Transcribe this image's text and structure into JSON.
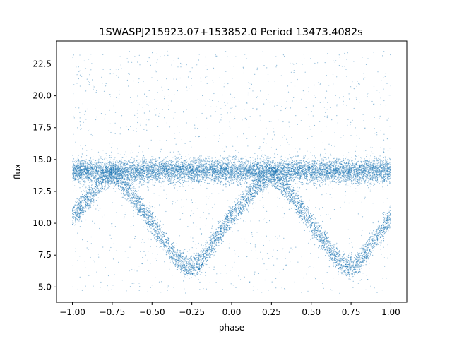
{
  "chart_data": {
    "type": "scatter",
    "title": "1SWASPJ215923.07+153852.0 Period 13473.4082s",
    "xlabel": "phase",
    "ylabel": "flux",
    "xlim": [
      -1.1,
      1.1
    ],
    "ylim": [
      3.8,
      24.3
    ],
    "xticks": [
      -1.0,
      -0.75,
      -0.5,
      -0.25,
      0.0,
      0.25,
      0.5,
      0.75,
      1.0
    ],
    "xtick_labels": [
      "−1.00",
      "−0.75",
      "−0.50",
      "−0.25",
      "0.00",
      "0.25",
      "0.50",
      "0.75",
      "1.00"
    ],
    "yticks": [
      5.0,
      7.5,
      10.0,
      12.5,
      15.0,
      17.5,
      20.0,
      22.5
    ],
    "ytick_labels": [
      "5.0",
      "7.5",
      "10.0",
      "12.5",
      "15.0",
      "17.5",
      "20.0",
      "22.5"
    ],
    "grid": false,
    "point_color": "#1f77b4",
    "series": [
      {
        "description_points": "phase-folded light curve, approximate envelope of dense point cloud",
        "baseline_band": {
          "x_range": [
            -1.0,
            1.0
          ],
          "flux_center": 14.1,
          "flux_spread": [
            12.6,
            15.8
          ]
        },
        "eclipse_minima": [
          {
            "phase": -0.27,
            "flux": 6.5
          },
          {
            "phase": 0.73,
            "flux": 6.5
          }
        ],
        "curve_samples": [
          {
            "x": -1.0,
            "y": 10.5
          },
          {
            "x": -0.9,
            "y": 12.0
          },
          {
            "x": -0.8,
            "y": 13.4
          },
          {
            "x": -0.75,
            "y": 13.9
          },
          {
            "x": -0.65,
            "y": 12.6
          },
          {
            "x": -0.55,
            "y": 10.9
          },
          {
            "x": -0.45,
            "y": 9.1
          },
          {
            "x": -0.35,
            "y": 7.3
          },
          {
            "x": -0.27,
            "y": 6.5
          },
          {
            "x": -0.2,
            "y": 6.9
          },
          {
            "x": -0.1,
            "y": 8.8
          },
          {
            "x": 0.0,
            "y": 10.5
          },
          {
            "x": 0.1,
            "y": 12.0
          },
          {
            "x": 0.2,
            "y": 13.4
          },
          {
            "x": 0.25,
            "y": 13.9
          },
          {
            "x": 0.35,
            "y": 12.6
          },
          {
            "x": 0.45,
            "y": 10.9
          },
          {
            "x": 0.55,
            "y": 9.1
          },
          {
            "x": 0.65,
            "y": 7.3
          },
          {
            "x": 0.73,
            "y": 6.5
          },
          {
            "x": 0.8,
            "y": 6.9
          },
          {
            "x": 0.9,
            "y": 8.8
          },
          {
            "x": 1.0,
            "y": 10.5
          }
        ],
        "outlier_flux_range": [
          4.5,
          23.5
        ]
      }
    ]
  }
}
